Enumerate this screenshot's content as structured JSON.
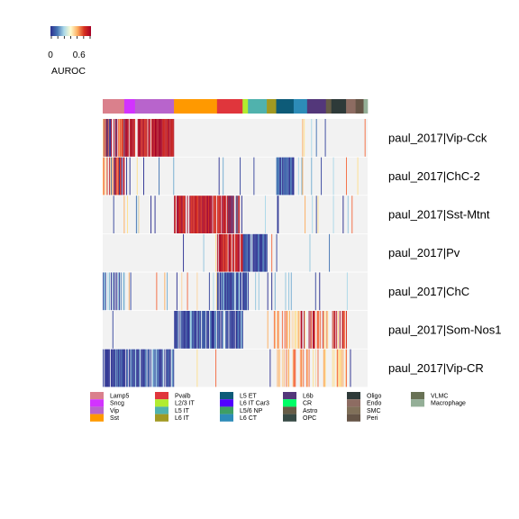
{
  "chart_data": {
    "type": "heatmap",
    "colorbar": {
      "title": "AUROC",
      "ticks": [
        "0",
        "0.6"
      ],
      "tick_values": [
        0,
        0.6
      ],
      "range": [
        0,
        0.85
      ],
      "colors": [
        "#2c2f8f",
        "#4575b4",
        "#abd9e9",
        "#fffdd0",
        "#fdae61",
        "#d7301f",
        "#a50026"
      ]
    },
    "rows": [
      "paul_2017|Vip-Cck",
      "paul_2017|ChC-2",
      "paul_2017|Sst-Mtnt",
      "paul_2017|Pv",
      "paul_2017|ChC",
      "paul_2017|Som-Nos1",
      "paul_2017|Vip-CR"
    ],
    "missing_color": "#f2f2f2",
    "column_groups": [
      {
        "name": "Lamp5",
        "color": "#da808c",
        "share": 0.08
      },
      {
        "name": "Sncg",
        "color": "#d233ff",
        "share": 0.04
      },
      {
        "name": "Vip",
        "color": "#b864cc",
        "share": 0.145
      },
      {
        "name": "Sst",
        "color": "#ff9900",
        "share": 0.16
      },
      {
        "name": "Pvalb",
        "color": "#e0363c",
        "share": 0.095
      },
      {
        "name": "L2/3 IT",
        "color": "#b1ec30",
        "share": 0.02
      },
      {
        "name": "L5 IT",
        "color": "#50b2ad",
        "share": 0.07
      },
      {
        "name": "L6 IT",
        "color": "#a19922",
        "share": 0.035
      },
      {
        "name": "L5 ET",
        "color": "#0d5b78",
        "share": 0.065
      },
      {
        "name": "L6 IT Car3",
        "color": "#5100ff",
        "share": 0.0
      },
      {
        "name": "L5/6 NP",
        "color": "#3e9e64",
        "share": 0.0
      },
      {
        "name": "L6 CT",
        "color": "#2d8cb8",
        "share": 0.05
      },
      {
        "name": "L6b",
        "color": "#53377a",
        "share": 0.07
      },
      {
        "name": "CR",
        "color": "#00ff66",
        "share": 0.0
      },
      {
        "name": "Astro",
        "color": "#665c47",
        "share": 0.02
      },
      {
        "name": "OPC",
        "color": "#374a45",
        "share": 0.0
      },
      {
        "name": "Oligo",
        "color": "#2e3a39",
        "share": 0.055
      },
      {
        "name": "Endo",
        "color": "#8d6c62",
        "share": 0.035
      },
      {
        "name": "SMC",
        "color": "#807059",
        "share": 0.0
      },
      {
        "name": "Peri",
        "color": "#665547",
        "share": 0.03
      },
      {
        "name": "VLMC",
        "color": "#697255",
        "share": 0.0
      },
      {
        "name": "Macrophage",
        "color": "#94af97",
        "share": 0.015
      }
    ]
  }
}
